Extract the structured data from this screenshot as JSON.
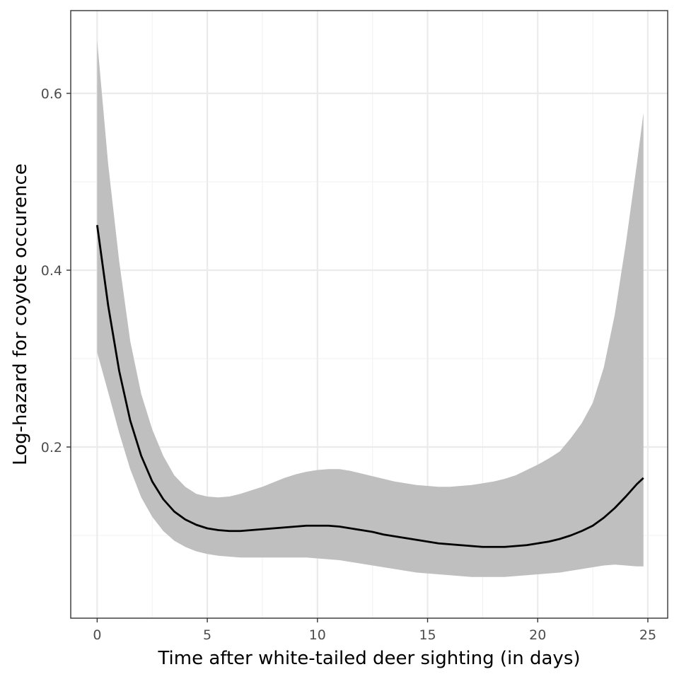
{
  "chart_data": {
    "type": "line",
    "title": "",
    "xlabel": "Time after white-tailed deer sighting (in days)",
    "ylabel": "Log-hazard for coyote occurence",
    "xlim": [
      -1.2,
      25.9
    ],
    "ylim": [
      0.0,
      0.6
    ],
    "x_ticks": [
      0,
      5,
      10,
      15,
      20,
      25
    ],
    "x_tick_labels": [
      "0",
      "5",
      "10",
      "15",
      "20",
      "25"
    ],
    "y_ticks": [
      0.2,
      0.4,
      0.6
    ],
    "y_tick_labels": [
      "0.2",
      "0.4",
      "0.6"
    ],
    "grid": true,
    "legend": "none",
    "colors": {
      "line": "#000000",
      "ribbon": "#bfbfbf",
      "panel_border": "#333333",
      "grid": "#ebebeb"
    },
    "series": [
      {
        "x": [
          0,
          0.5,
          1,
          1.5,
          2,
          2.5,
          3,
          3.5,
          4,
          4.5,
          5,
          5.5,
          6,
          6.5,
          7,
          7.5,
          8,
          8.5,
          9,
          9.5,
          10,
          10.5,
          11,
          11.5,
          12,
          12.5,
          13,
          13.5,
          14,
          14.5,
          15,
          15.5,
          16,
          16.5,
          17,
          17.5,
          18,
          18.5,
          19,
          19.5,
          20,
          20.5,
          21,
          21.5,
          22,
          22.5,
          23,
          23.5,
          24,
          24.5,
          24.8
        ],
        "y": [
          0.451,
          0.36,
          0.286,
          0.23,
          0.19,
          0.161,
          0.141,
          0.127,
          0.118,
          0.112,
          0.108,
          0.106,
          0.105,
          0.105,
          0.106,
          0.107,
          0.108,
          0.109,
          0.11,
          0.111,
          0.111,
          0.111,
          0.11,
          0.108,
          0.106,
          0.104,
          0.101,
          0.099,
          0.097,
          0.095,
          0.093,
          0.091,
          0.09,
          0.089,
          0.088,
          0.087,
          0.087,
          0.087,
          0.088,
          0.089,
          0.091,
          0.093,
          0.096,
          0.1,
          0.105,
          0.111,
          0.12,
          0.131,
          0.144,
          0.158,
          0.165
        ],
        "lower": [
          0.307,
          0.262,
          0.216,
          0.175,
          0.143,
          0.121,
          0.105,
          0.094,
          0.087,
          0.082,
          0.079,
          0.077,
          0.076,
          0.075,
          0.075,
          0.075,
          0.075,
          0.075,
          0.075,
          0.075,
          0.074,
          0.073,
          0.072,
          0.07,
          0.068,
          0.066,
          0.064,
          0.062,
          0.06,
          0.058,
          0.057,
          0.056,
          0.055,
          0.054,
          0.053,
          0.053,
          0.053,
          0.053,
          0.054,
          0.055,
          0.056,
          0.057,
          0.058,
          0.06,
          0.062,
          0.064,
          0.066,
          0.067,
          0.066,
          0.065,
          0.065
        ],
        "upper": [
          0.66,
          0.52,
          0.41,
          0.32,
          0.26,
          0.22,
          0.19,
          0.168,
          0.155,
          0.147,
          0.144,
          0.143,
          0.144,
          0.147,
          0.151,
          0.155,
          0.16,
          0.165,
          0.169,
          0.172,
          0.174,
          0.175,
          0.175,
          0.173,
          0.17,
          0.167,
          0.164,
          0.161,
          0.159,
          0.157,
          0.156,
          0.155,
          0.155,
          0.156,
          0.157,
          0.159,
          0.161,
          0.164,
          0.168,
          0.174,
          0.18,
          0.187,
          0.195,
          0.21,
          0.227,
          0.25,
          0.29,
          0.35,
          0.43,
          0.52,
          0.578
        ]
      }
    ]
  }
}
